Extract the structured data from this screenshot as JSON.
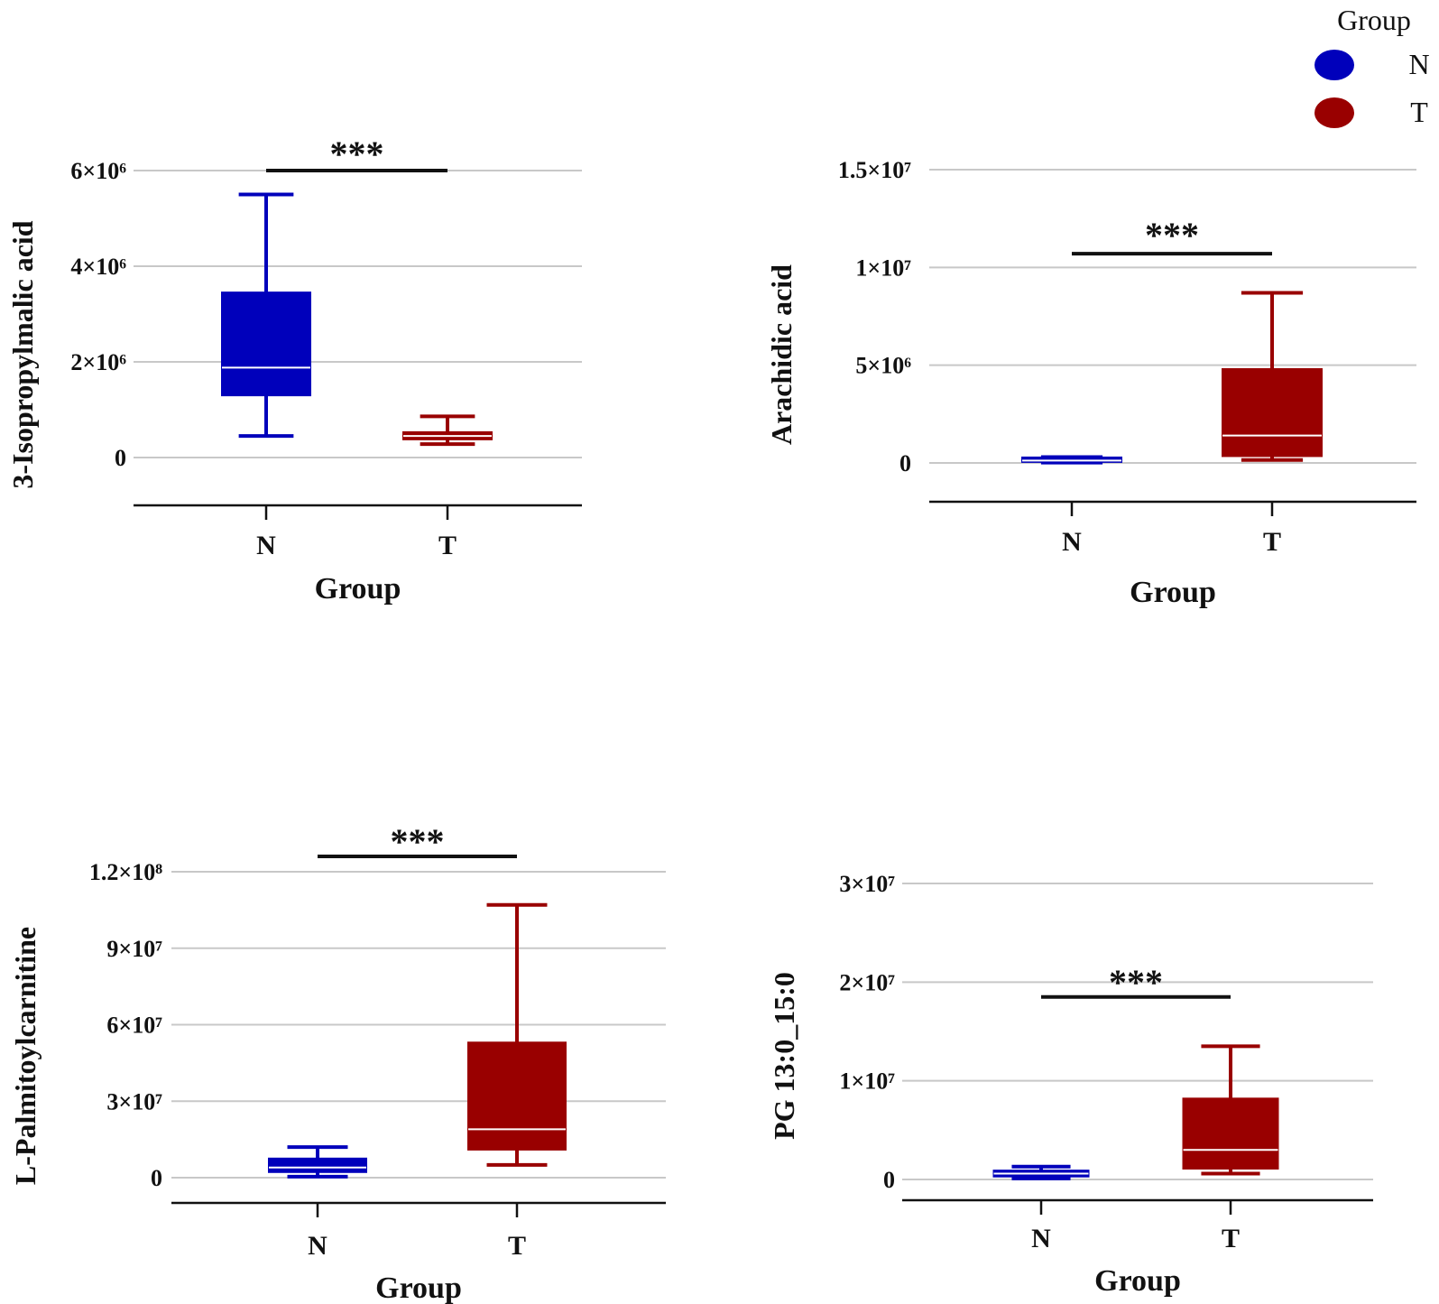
{
  "legend": {
    "title": "Group",
    "items": [
      {
        "label": "N",
        "color": "#0000bb"
      },
      {
        "label": "T",
        "color": "#990000"
      }
    ]
  },
  "chart_data": [
    {
      "type": "box",
      "ylabel": "3-Isopropylmalic acid",
      "xlabel": "Group",
      "categories": [
        "N",
        "T"
      ],
      "ylim": [
        -1000000,
        6000000
      ],
      "ticks": [
        {
          "value": 0,
          "label": "0"
        },
        {
          "value": 2000000,
          "label": "2×10⁶"
        },
        {
          "value": 4000000,
          "label": "4×10⁶"
        },
        {
          "value": 6000000,
          "label": "6×10⁶"
        }
      ],
      "boxes": [
        {
          "group": "N",
          "whisker_low": 450000,
          "q1": 1300000,
          "median": 1880000,
          "q3": 3450000,
          "whisker_high": 5500000
        },
        {
          "group": "T",
          "whisker_low": 280000,
          "q1": 380000,
          "median": 450000,
          "q3": 530000,
          "whisker_high": 860000
        }
      ],
      "significance": {
        "label": "***",
        "value": 6000000
      }
    },
    {
      "type": "box",
      "ylabel": "Arachidic acid",
      "xlabel": "Group",
      "categories": [
        "N",
        "T"
      ],
      "ylim": [
        -2000000,
        15000000
      ],
      "ticks": [
        {
          "value": 0,
          "label": "0"
        },
        {
          "value": 5000000,
          "label": "5×10⁶"
        },
        {
          "value": 10000000,
          "label": "1×10⁷"
        },
        {
          "value": 15000000,
          "label": "1.5×10⁷"
        }
      ],
      "boxes": [
        {
          "group": "N",
          "whisker_low": 20000,
          "q1": 50000,
          "median": 120000,
          "q3": 280000,
          "whisker_high": 300000
        },
        {
          "group": "T",
          "whisker_low": 150000,
          "q1": 350000,
          "median": 1400000,
          "q3": 4800000,
          "whisker_high": 8700000
        }
      ],
      "significance": {
        "label": "***",
        "value": 10700000
      }
    },
    {
      "type": "box",
      "ylabel": "L-Palmitoylcarnitine",
      "xlabel": "Group",
      "categories": [
        "N",
        "T"
      ],
      "ylim": [
        -10000000,
        120000000
      ],
      "ticks": [
        {
          "value": 0,
          "label": "0"
        },
        {
          "value": 30000000,
          "label": "3×10⁷"
        },
        {
          "value": 60000000,
          "label": "6×10⁷"
        },
        {
          "value": 90000000,
          "label": "9×10⁷"
        },
        {
          "value": 120000000,
          "label": "1.2×10⁸"
        }
      ],
      "boxes": [
        {
          "group": "N",
          "whisker_low": 400000,
          "q1": 2200000,
          "median": 4000000,
          "q3": 7500000,
          "whisker_high": 12000000
        },
        {
          "group": "T",
          "whisker_low": 5000000,
          "q1": 11000000,
          "median": 19000000,
          "q3": 53000000,
          "whisker_high": 107000000
        }
      ],
      "significance": {
        "label": "***",
        "value": 126000000
      }
    },
    {
      "type": "box",
      "ylabel": "PG 13:0_15:0",
      "xlabel": "Group",
      "categories": [
        "N",
        "T"
      ],
      "ylim": [
        -2000000,
        30000000
      ],
      "ticks": [
        {
          "value": 0,
          "label": "0"
        },
        {
          "value": 10000000,
          "label": "1×10⁷"
        },
        {
          "value": 20000000,
          "label": "2×10⁷"
        },
        {
          "value": 30000000,
          "label": "3×10⁷"
        }
      ],
      "boxes": [
        {
          "group": "N",
          "whisker_low": 100000,
          "q1": 300000,
          "median": 600000,
          "q3": 900000,
          "whisker_high": 1300000
        },
        {
          "group": "T",
          "whisker_low": 600000,
          "q1": 1100000,
          "median": 3000000,
          "q3": 8200000,
          "whisker_high": 13500000
        }
      ],
      "significance": {
        "label": "***",
        "value": 18500000
      }
    }
  ]
}
